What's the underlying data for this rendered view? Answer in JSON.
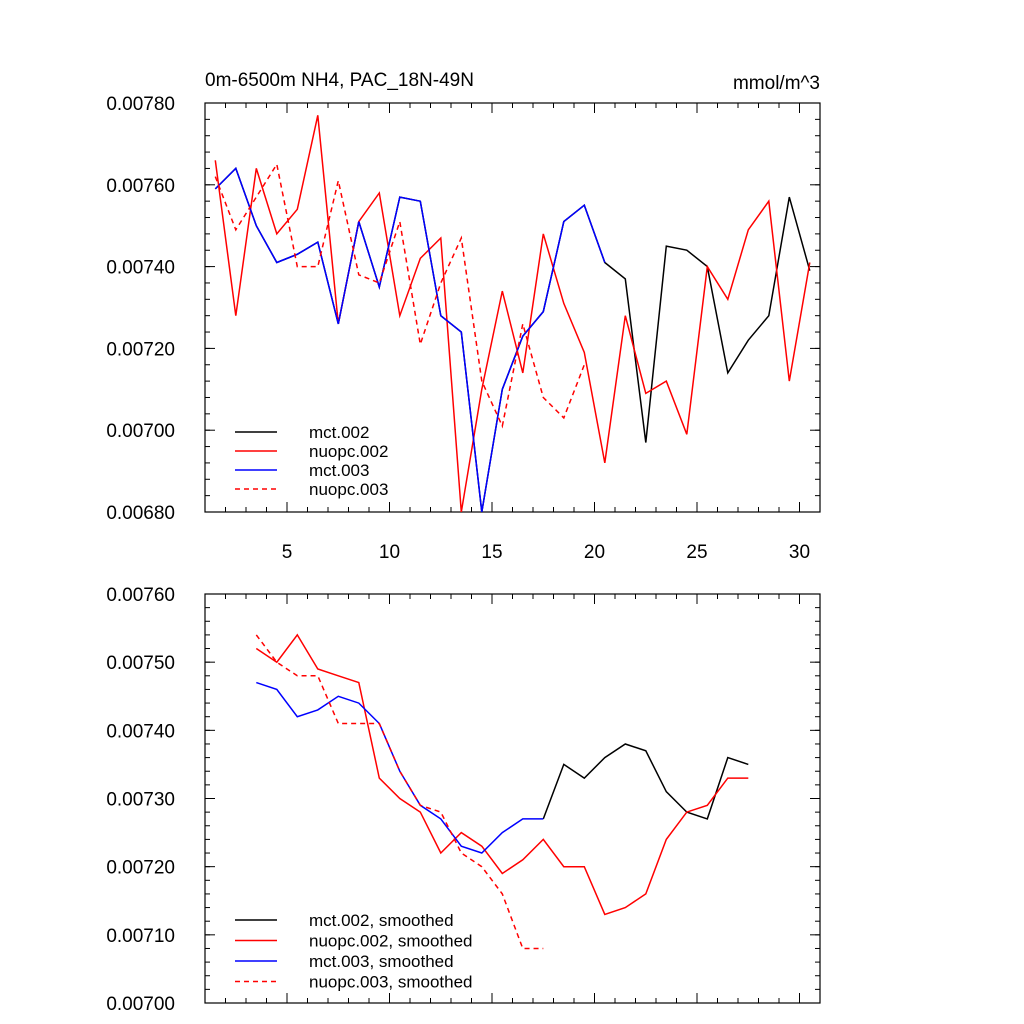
{
  "chart_data": [
    {
      "type": "line",
      "title": "0m-6500m NH4, PAC_18N-49N",
      "units_label": "mmol/m^3",
      "xlabel": "",
      "ylabel": "",
      "xlim": [
        1,
        31
      ],
      "ylim": [
        0.0068,
        0.0078
      ],
      "y_ticks": [
        0.0068,
        0.007,
        0.0072,
        0.0074,
        0.0076,
        0.0078
      ],
      "y_tick_labels": [
        "0.00680",
        "0.00700",
        "0.00720",
        "0.00740",
        "0.00760",
        "0.00780"
      ],
      "x_ticks": [
        5,
        10,
        15,
        20,
        25,
        30
      ],
      "x_tick_labels": [
        "5",
        "10",
        "15",
        "20",
        "25",
        "30"
      ],
      "legend_position": "bottom-left",
      "series": [
        {
          "name": "mct.002",
          "color": "#000000",
          "dash": "solid",
          "x": [
            1.5,
            2.5,
            3.5,
            4.5,
            5.5,
            6.5,
            7.5,
            8.5,
            9.5,
            10.5,
            11.5,
            12.5,
            13.5,
            14.5,
            15.5,
            16.5,
            17.5,
            18.5,
            19.5,
            20.5,
            21.5,
            22.5,
            23.5,
            24.5,
            25.5,
            26.5,
            27.5,
            28.5,
            29.5,
            30.5
          ],
          "values": [
            0.00759,
            0.00764,
            0.0075,
            0.00741,
            0.00743,
            0.00746,
            0.00726,
            0.00751,
            0.00735,
            0.00757,
            0.00756,
            0.00728,
            0.00724,
            0.0068,
            0.0071,
            0.00723,
            0.00729,
            0.00751,
            0.00755,
            0.00741,
            0.00737,
            0.00697,
            0.00745,
            0.00744,
            0.0074,
            0.00714,
            0.00722,
            0.00728,
            0.00757,
            0.00739
          ]
        },
        {
          "name": "nuopc.002",
          "color": "#ff0000",
          "dash": "solid",
          "x": [
            1.5,
            2.5,
            3.5,
            4.5,
            5.5,
            6.5,
            7.5,
            8.5,
            9.5,
            10.5,
            11.5,
            12.5,
            13.5,
            14.5,
            15.5,
            16.5,
            17.5,
            18.5,
            19.5,
            20.5,
            21.5,
            22.5,
            23.5,
            24.5,
            25.5,
            26.5,
            27.5,
            28.5,
            29.5,
            30.5
          ],
          "values": [
            0.00766,
            0.00728,
            0.00764,
            0.00748,
            0.00754,
            0.00777,
            0.00726,
            0.00751,
            0.00758,
            0.00728,
            0.00742,
            0.00747,
            0.0068,
            0.0071,
            0.00734,
            0.00714,
            0.00748,
            0.00731,
            0.00719,
            0.00692,
            0.00728,
            0.00709,
            0.00712,
            0.00699,
            0.0074,
            0.00732,
            0.00749,
            0.00756,
            0.00712,
            0.00741
          ]
        },
        {
          "name": "mct.003",
          "color": "#0000ff",
          "dash": "solid",
          "x": [
            1.5,
            2.5,
            3.5,
            4.5,
            5.5,
            6.5,
            7.5,
            8.5,
            9.5,
            10.5,
            11.5,
            12.5,
            13.5,
            14.5,
            15.5,
            16.5,
            17.5,
            18.5,
            19.5,
            20.5
          ],
          "values": [
            0.00759,
            0.00764,
            0.0075,
            0.00741,
            0.00743,
            0.00746,
            0.00726,
            0.00751,
            0.00735,
            0.00757,
            0.00756,
            0.00728,
            0.00724,
            0.0068,
            0.0071,
            0.00723,
            0.00729,
            0.00751,
            0.00755,
            0.00741
          ]
        },
        {
          "name": "nuopc.003",
          "color": "#ff0000",
          "dash": "dashed",
          "x": [
            1.5,
            2.5,
            3.5,
            4.5,
            5.5,
            6.5,
            7.5,
            8.5,
            9.5,
            10.5,
            11.5,
            12.5,
            13.5,
            14.5,
            15.5,
            16.5,
            17.5,
            18.5,
            19.5
          ],
          "values": [
            0.00762,
            0.00749,
            0.00757,
            0.00765,
            0.0074,
            0.0074,
            0.00761,
            0.00738,
            0.00736,
            0.00751,
            0.00721,
            0.00736,
            0.00747,
            0.00712,
            0.00701,
            0.00726,
            0.00708,
            0.00703,
            0.00716
          ]
        }
      ]
    },
    {
      "type": "line",
      "title": "",
      "xlabel": "",
      "ylabel": "",
      "xlim": [
        1,
        31
      ],
      "ylim": [
        0.007,
        0.0076
      ],
      "y_ticks": [
        0.007,
        0.0071,
        0.0072,
        0.0073,
        0.0074,
        0.0075,
        0.0076
      ],
      "y_tick_labels": [
        "0.00700",
        "0.00710",
        "0.00720",
        "0.00730",
        "0.00740",
        "0.00750",
        "0.00760"
      ],
      "x_ticks": [
        5,
        10,
        15,
        20,
        25,
        30
      ],
      "legend_position": "bottom-left",
      "series": [
        {
          "name": "mct.002, smoothed",
          "color": "#000000",
          "dash": "solid",
          "x": [
            17.5,
            18.5,
            19.5,
            20.5,
            21.5,
            22.5,
            23.5,
            24.5,
            25.5,
            26.5,
            27.5
          ],
          "values": [
            0.00727,
            0.00735,
            0.00733,
            0.00736,
            0.00738,
            0.00737,
            0.00731,
            0.00728,
            0.00727,
            0.00736,
            0.00735
          ]
        },
        {
          "name": "nuopc.002, smoothed",
          "color": "#ff0000",
          "dash": "solid",
          "x": [
            3.5,
            4.5,
            5.5,
            6.5,
            7.5,
            8.5,
            9.5,
            10.5,
            11.5,
            12.5,
            13.5,
            14.5,
            15.5,
            16.5,
            17.5,
            18.5,
            19.5,
            20.5,
            21.5,
            22.5,
            23.5,
            24.5,
            25.5,
            26.5,
            27.5
          ],
          "values": [
            0.00752,
            0.0075,
            0.00754,
            0.00749,
            0.00748,
            0.00747,
            0.00733,
            0.0073,
            0.00728,
            0.00722,
            0.00725,
            0.00723,
            0.00719,
            0.00721,
            0.00724,
            0.0072,
            0.0072,
            0.00713,
            0.00714,
            0.00716,
            0.00724,
            0.00728,
            0.00729,
            0.00733,
            0.00733
          ]
        },
        {
          "name": "mct.003, smoothed",
          "color": "#0000ff",
          "dash": "solid",
          "x": [
            3.5,
            4.5,
            5.5,
            6.5,
            7.5,
            8.5,
            9.5,
            10.5,
            11.5,
            12.5,
            13.5,
            14.5,
            15.5,
            16.5,
            17.5
          ],
          "values": [
            0.00747,
            0.00746,
            0.00742,
            0.00743,
            0.00745,
            0.00744,
            0.00741,
            0.00734,
            0.00729,
            0.00727,
            0.00723,
            0.00722,
            0.00725,
            0.00727,
            0.00727
          ]
        },
        {
          "name": "nuopc.003, smoothed",
          "color": "#ff0000",
          "dash": "dashed",
          "x": [
            3.5,
            4.5,
            5.5,
            6.5,
            7.5,
            8.5,
            9.5,
            10.5,
            11.5,
            12.5,
            13.5,
            14.5,
            15.5,
            16.5,
            17.5
          ],
          "values": [
            0.00754,
            0.0075,
            0.00748,
            0.00748,
            0.00741,
            0.00741,
            0.00741,
            0.00734,
            0.00729,
            0.00728,
            0.00722,
            0.0072,
            0.00716,
            0.00708,
            0.00708
          ]
        }
      ]
    }
  ]
}
